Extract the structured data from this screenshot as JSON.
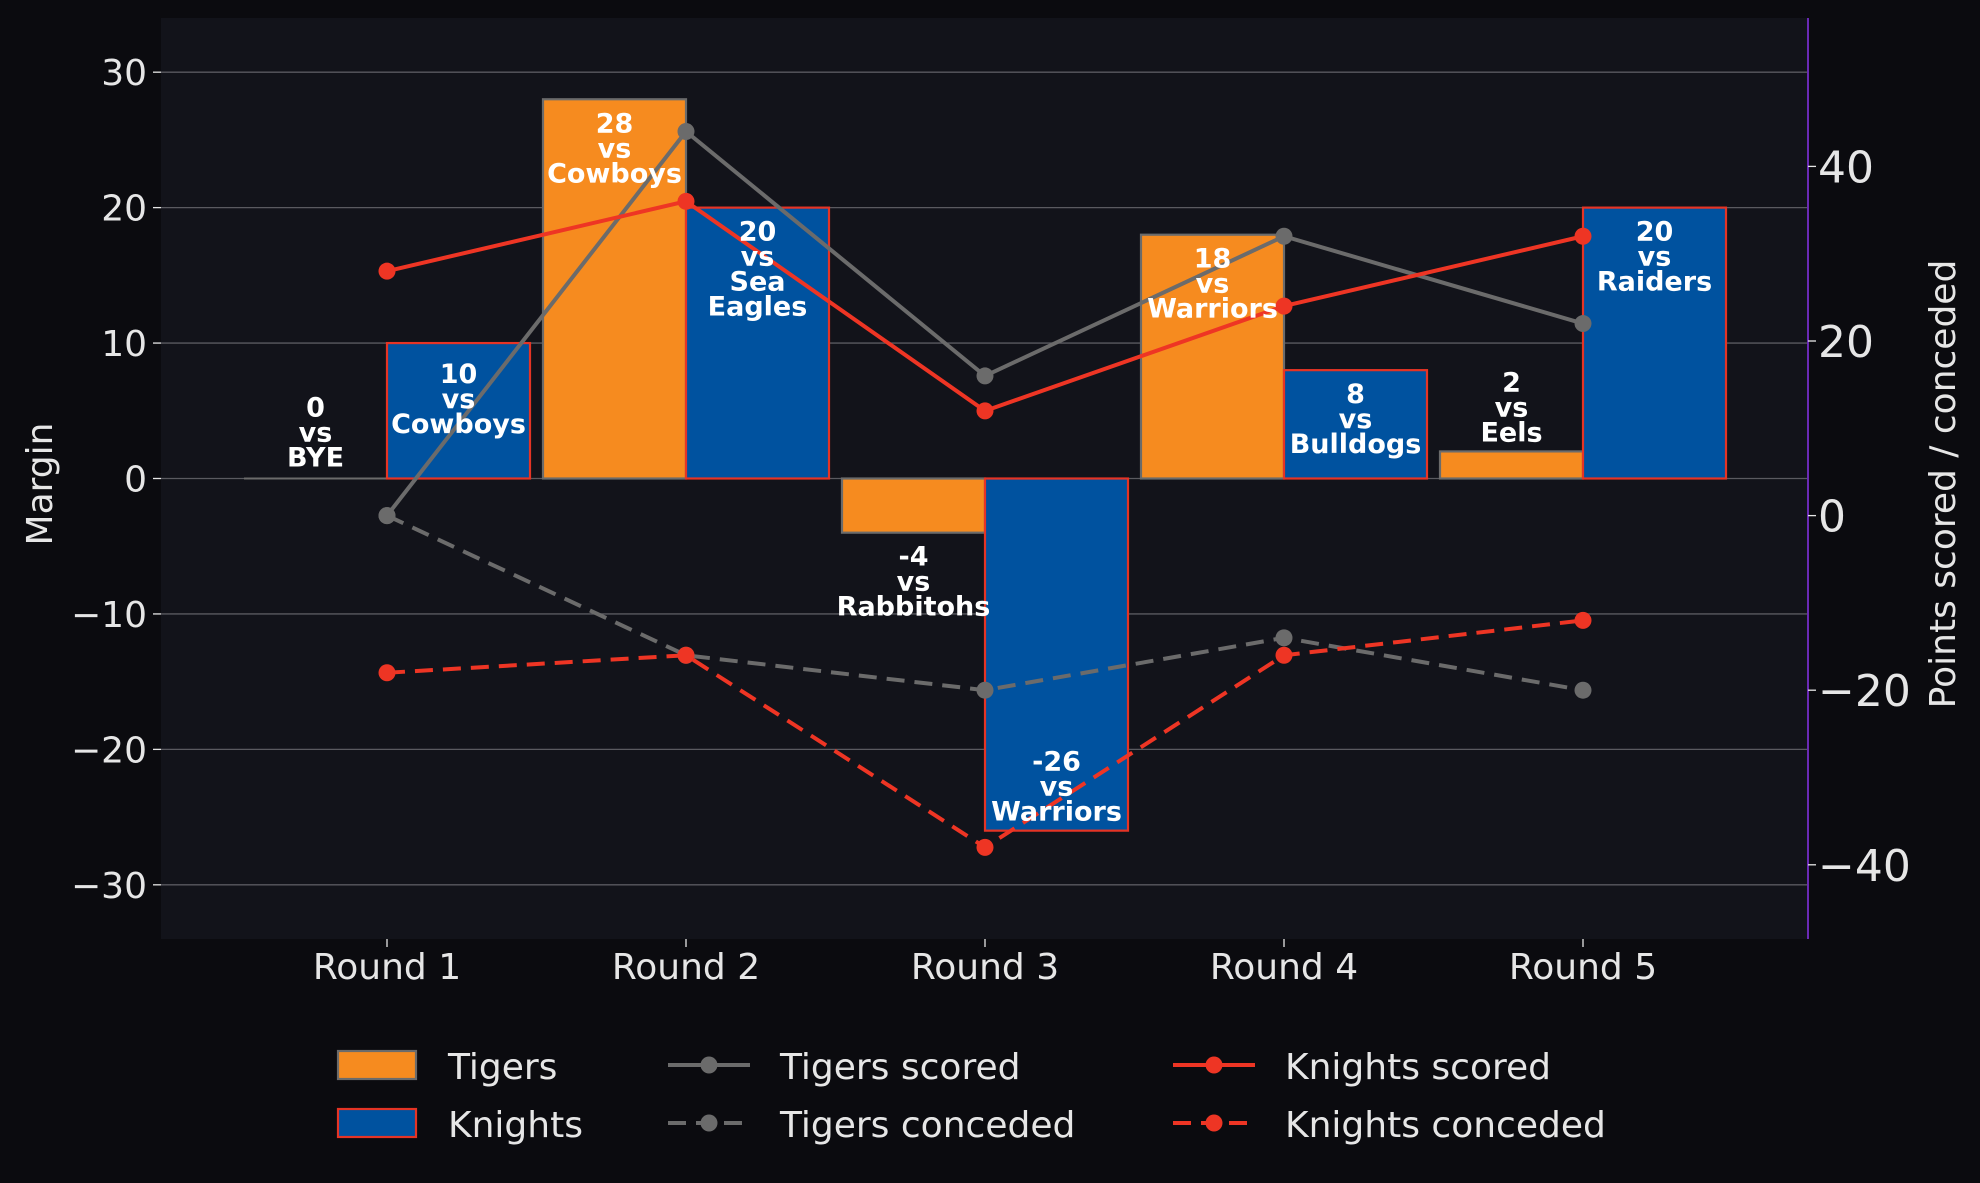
{
  "chart_data": {
    "type": "bar",
    "categories": [
      "Round 1",
      "Round 2",
      "Round 3",
      "Round 4",
      "Round 5"
    ],
    "ylabel": "Margin",
    "y2label": "Points scored / conceded",
    "ylim": [
      -34,
      34
    ],
    "y2lim": [
      -48.5,
      57
    ],
    "yticks": [
      -30,
      -20,
      -10,
      0,
      10,
      20,
      30
    ],
    "y2ticks": [
      -40,
      -20,
      0,
      20,
      40
    ],
    "grid": "horizontal",
    "legend_position": "bottom",
    "bar_series": [
      {
        "name": "Tigers",
        "values": [
          0,
          28,
          -4,
          18,
          2
        ],
        "labels": [
          [
            "0",
            "vs",
            "BYE"
          ],
          [
            "28",
            "vs",
            "Cowboys"
          ],
          [
            "-4",
            "vs",
            "Rabbitohs"
          ],
          [
            "18",
            "vs",
            "Warriors"
          ],
          [
            "2",
            "vs",
            "Eels"
          ]
        ]
      },
      {
        "name": "Knights",
        "values": [
          10,
          20,
          -26,
          8,
          20
        ],
        "labels": [
          [
            "10",
            "vs",
            "Cowboys"
          ],
          [
            "20",
            "vs",
            "Sea",
            "Eagles"
          ],
          [
            "-26",
            "vs",
            "Warriors"
          ],
          [
            "8",
            "vs",
            "Bulldogs"
          ],
          [
            "20",
            "vs",
            "Raiders"
          ]
        ]
      }
    ],
    "line_series": [
      {
        "name": "Tigers scored",
        "values": [
          0,
          44,
          16,
          32,
          22
        ],
        "style": "solid"
      },
      {
        "name": "Tigers conceded",
        "values": [
          0,
          -16,
          -20,
          -14,
          -20
        ],
        "style": "dashed"
      },
      {
        "name": "Knights scored",
        "values": [
          28,
          36,
          12,
          24,
          32
        ],
        "style": "solid"
      },
      {
        "name": "Knights conceded",
        "values": [
          -18,
          -16,
          -38,
          -16,
          -12
        ],
        "style": "dashed"
      }
    ]
  },
  "colors": {
    "background": "#0b0b0f",
    "plot_background": "#12131a",
    "tigers": "#f68b1f",
    "tigers_edge": "#6b6b6b",
    "knights": "#00529f",
    "knights_edge": "#e53425",
    "tigers_line": "#6b6b6b",
    "knights_line": "#ee3524",
    "grid": "#5a5a60",
    "text": "#e6e6e6",
    "right_spine": "#6a2ab5"
  }
}
